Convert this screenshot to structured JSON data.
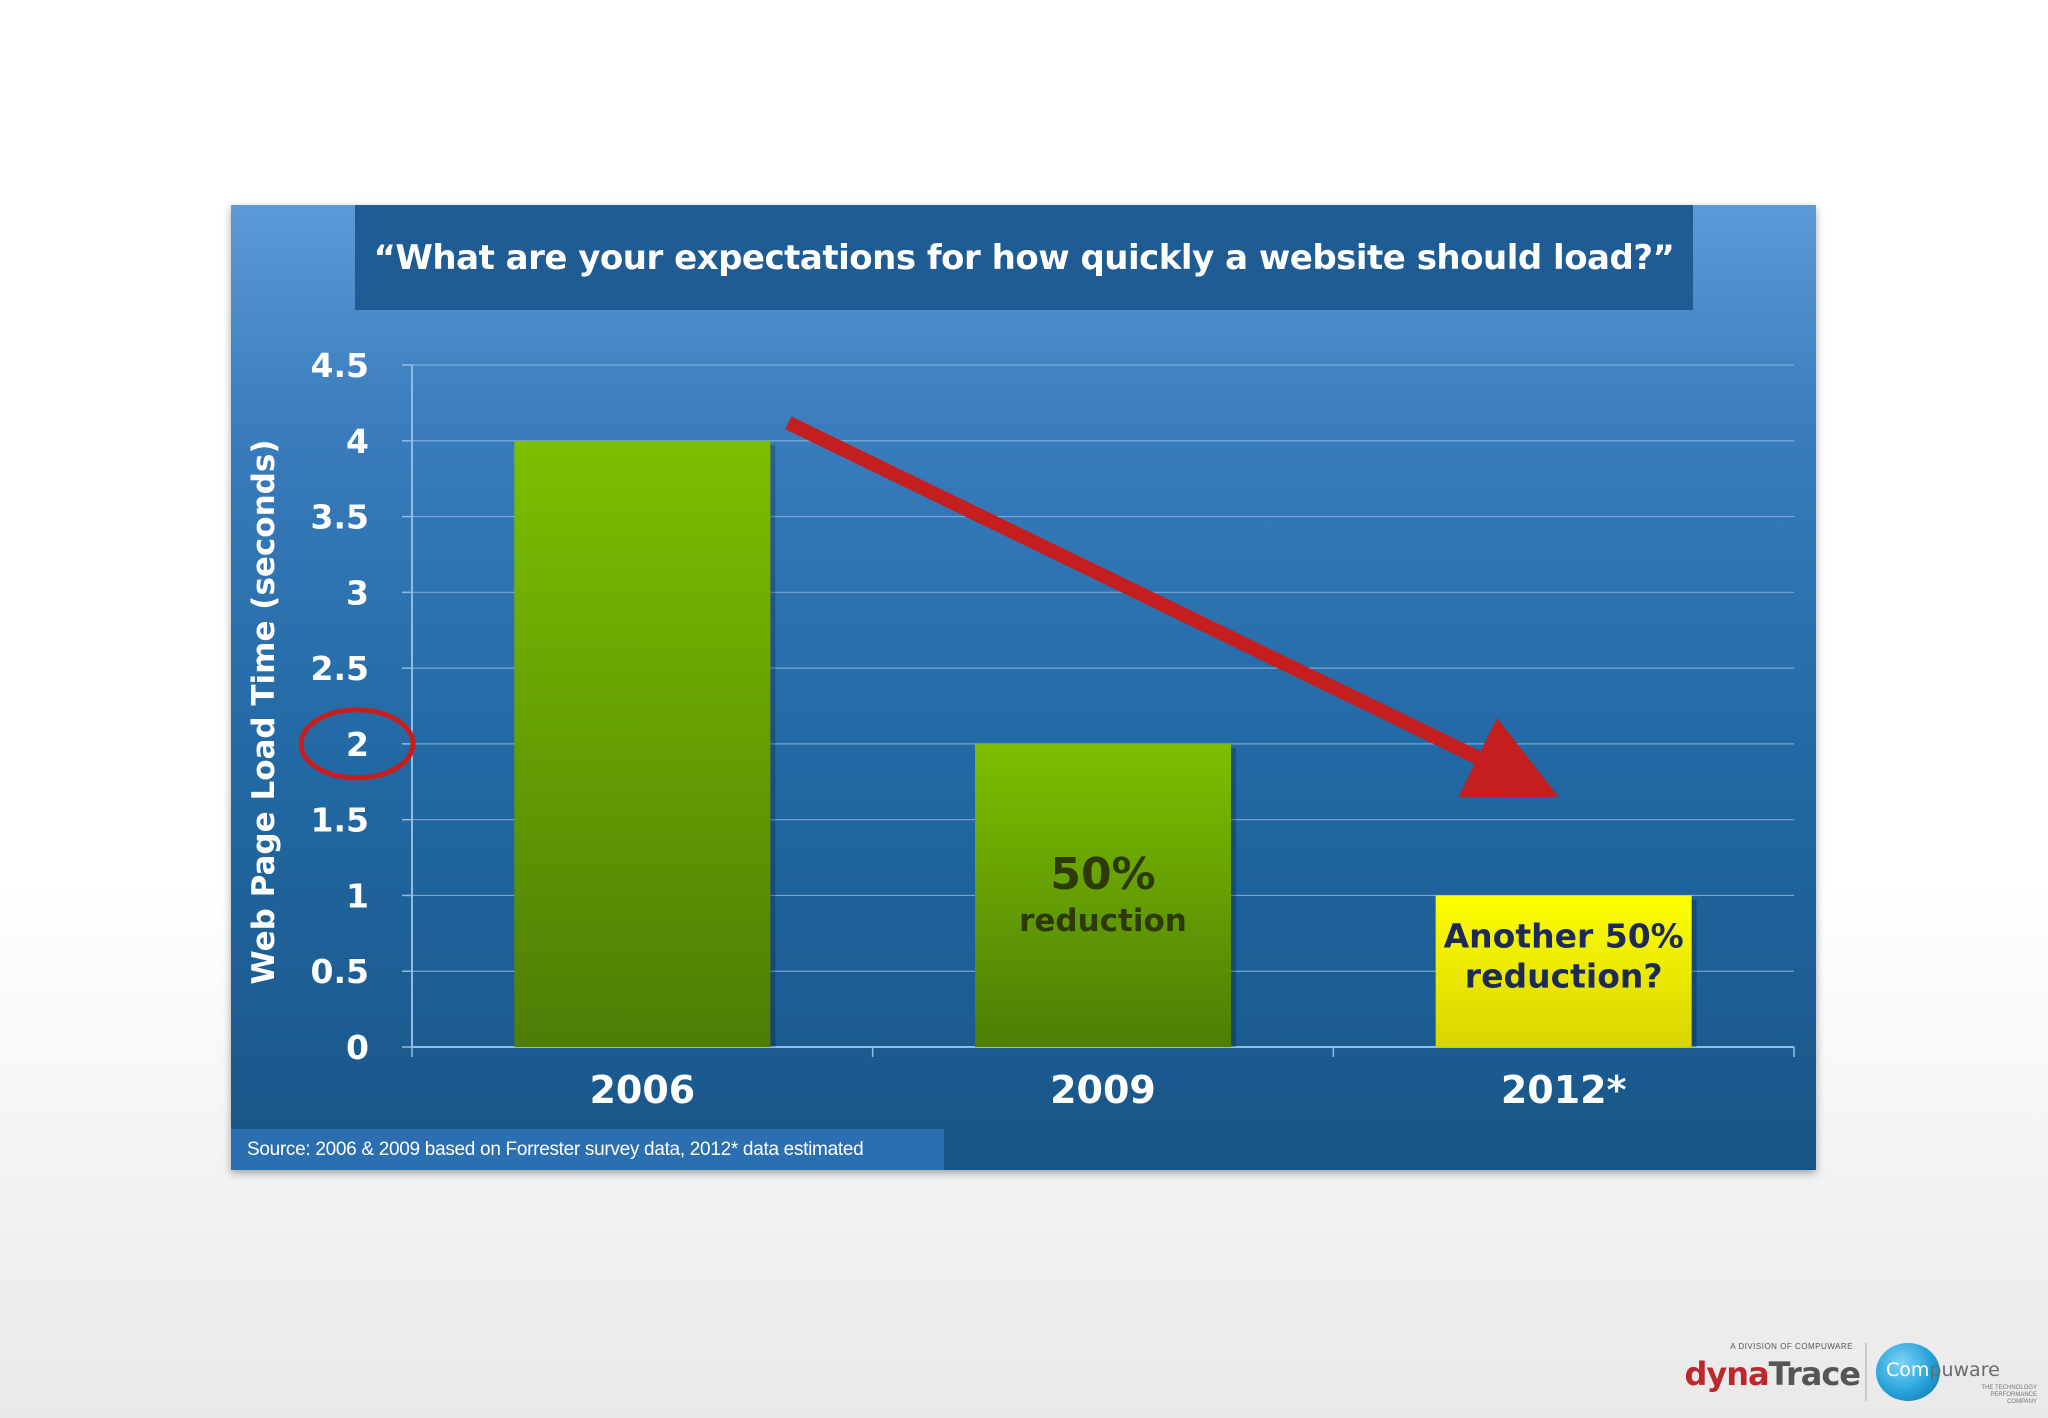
{
  "chart_data": {
    "type": "bar",
    "title": "“What are your expectations for how quickly a website should load?”",
    "xlabel": "",
    "ylabel": "Web Page Load Time (seconds)",
    "categories": [
      "2006",
      "2009",
      "2012*"
    ],
    "values": [
      4,
      2,
      1
    ],
    "ylim": [
      0,
      4.5
    ],
    "yticks": [
      "0",
      "0.5",
      "1",
      "1.5",
      "2",
      "2.5",
      "3",
      "3.5",
      "4",
      "4.5"
    ],
    "grid": true,
    "annotations": [
      {
        "category": "2009",
        "line1": "50%",
        "line2": "reduction"
      },
      {
        "category": "2012*",
        "line1": "Another 50%",
        "line2": "reduction?"
      }
    ],
    "highlighted_tick": "2",
    "trend_arrow": "from 2006 bar top down to 2012*",
    "source": "Source: 2006 & 2009 based on Forrester survey data, 2012* data estimated"
  },
  "colors": {
    "bar": "#7cc000",
    "bar_dark": "#4e7d05",
    "estimate_bar": "#ffff00",
    "estimate_bar_dark": "#d8d400",
    "arrow": "#c41e1e",
    "grid": "#8fbce6"
  },
  "logo": {
    "division_note": "A DIVISION OF COMPUWARE",
    "dyna": "dyna",
    "trace": "Trace",
    "compuware_c": "Com",
    "compuware_rest": "puware",
    "tagline": "THE TECHNOLOGY PERFORMANCE COMPANY"
  }
}
